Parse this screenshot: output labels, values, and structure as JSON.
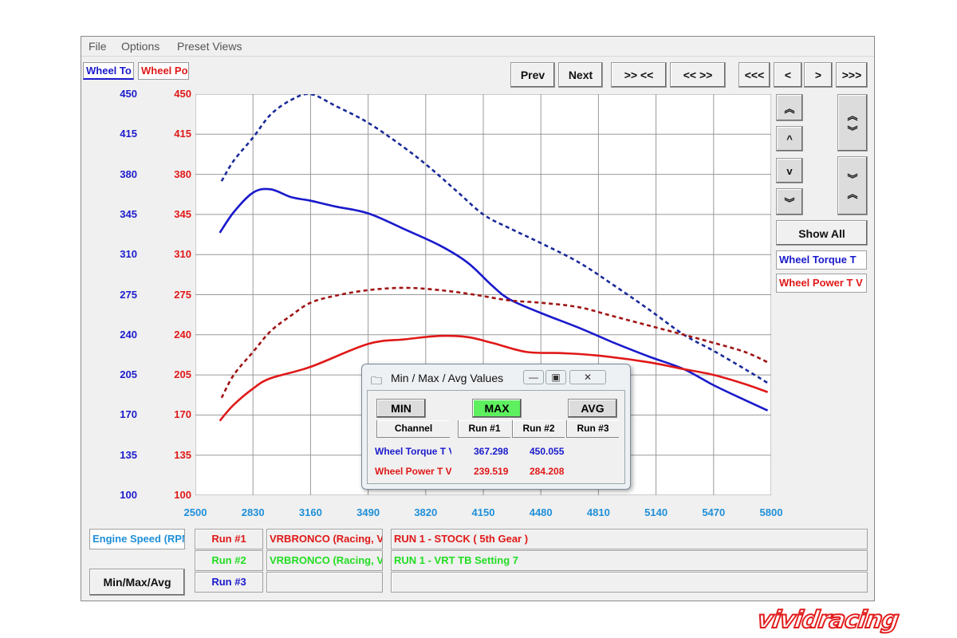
{
  "menu": [
    "File",
    "Options",
    "Preset Views"
  ],
  "tabs": {
    "left": "Wheel To",
    "right": "Wheel Po"
  },
  "nav": {
    "prev": "Prev",
    "next": "Next",
    "zoom_in": ">> <<",
    "zoom_out": "<< >>",
    "far_left": "<<<",
    "left": "<",
    "right": ">",
    "far_right": ">>>"
  },
  "scroll_buttons": {
    "up_double": "︽",
    "up": "^",
    "down": "v",
    "down_double": "︾"
  },
  "show_all": "Show All",
  "legend": {
    "torque": "Wheel Torque T",
    "power": "Wheel Power T V"
  },
  "colors": {
    "torque": "#1a1acc",
    "power": "#e01818",
    "power_run2": "#a01414",
    "torque_run2": "#1a2a9a",
    "run2_green": "#22dd22",
    "x_axis": "#1f8fd8"
  },
  "chart_data": {
    "type": "line",
    "x_range": [
      2500,
      5800
    ],
    "y_range": [
      100,
      450
    ],
    "x_ticks": [
      "2500",
      "2830",
      "3160",
      "3490",
      "3820",
      "4150",
      "4480",
      "4810",
      "5140",
      "5470",
      "5800"
    ],
    "y_ticks_left": [
      "450",
      "415",
      "380",
      "345",
      "310",
      "275",
      "240",
      "205",
      "170",
      "135",
      "100"
    ],
    "y_ticks_right": [
      "450",
      "415",
      "380",
      "345",
      "310",
      "275",
      "240",
      "205",
      "170",
      "135",
      "100"
    ],
    "grid": true,
    "series": [
      {
        "channel": "torque",
        "run": 1,
        "style": "solid",
        "points": [
          [
            2640,
            329
          ],
          [
            2720,
            347
          ],
          [
            2830,
            364
          ],
          [
            2930,
            367
          ],
          [
            3050,
            360
          ],
          [
            3160,
            357
          ],
          [
            3300,
            352
          ],
          [
            3490,
            346
          ],
          [
            3700,
            332
          ],
          [
            3900,
            318
          ],
          [
            4060,
            303
          ],
          [
            4200,
            283
          ],
          [
            4300,
            271
          ],
          [
            4480,
            259
          ],
          [
            4700,
            246
          ],
          [
            4900,
            233
          ],
          [
            5100,
            221
          ],
          [
            5300,
            210
          ],
          [
            5470,
            196
          ],
          [
            5650,
            183
          ],
          [
            5780,
            174
          ]
        ]
      },
      {
        "channel": "torque",
        "run": 2,
        "style": "dashed",
        "points": [
          [
            2650,
            374
          ],
          [
            2720,
            392
          ],
          [
            2830,
            412
          ],
          [
            2930,
            432
          ],
          [
            3050,
            445
          ],
          [
            3160,
            450
          ],
          [
            3300,
            440
          ],
          [
            3490,
            425
          ],
          [
            3700,
            403
          ],
          [
            3850,
            385
          ],
          [
            4000,
            365
          ],
          [
            4150,
            345
          ],
          [
            4300,
            333
          ],
          [
            4480,
            320
          ],
          [
            4700,
            303
          ],
          [
            4900,
            283
          ],
          [
            5100,
            262
          ],
          [
            5300,
            240
          ],
          [
            5470,
            226
          ],
          [
            5650,
            210
          ],
          [
            5780,
            198
          ]
        ]
      },
      {
        "channel": "power",
        "run": 1,
        "style": "solid",
        "points": [
          [
            2640,
            165
          ],
          [
            2720,
            179
          ],
          [
            2830,
            193
          ],
          [
            2930,
            202
          ],
          [
            3160,
            212
          ],
          [
            3490,
            232
          ],
          [
            3700,
            236
          ],
          [
            3900,
            239
          ],
          [
            4060,
            238
          ],
          [
            4200,
            233
          ],
          [
            4400,
            225
          ],
          [
            4600,
            224
          ],
          [
            4800,
            222
          ],
          [
            5100,
            216
          ],
          [
            5300,
            210
          ],
          [
            5470,
            205
          ],
          [
            5650,
            197
          ],
          [
            5780,
            190
          ]
        ]
      },
      {
        "channel": "power",
        "run": 2,
        "style": "dashed",
        "points": [
          [
            2650,
            185
          ],
          [
            2720,
            205
          ],
          [
            2830,
            225
          ],
          [
            2930,
            243
          ],
          [
            3050,
            257
          ],
          [
            3160,
            268
          ],
          [
            3300,
            274
          ],
          [
            3490,
            279
          ],
          [
            3700,
            281
          ],
          [
            3900,
            279
          ],
          [
            4100,
            275
          ],
          [
            4300,
            270
          ],
          [
            4480,
            268
          ],
          [
            4700,
            264
          ],
          [
            4900,
            256
          ],
          [
            5100,
            248
          ],
          [
            5300,
            240
          ],
          [
            5470,
            233
          ],
          [
            5650,
            225
          ],
          [
            5780,
            216
          ]
        ]
      }
    ]
  },
  "dialog": {
    "title": "Min / Max / Avg Values",
    "buttons": {
      "min": "MIN",
      "max": "MAX",
      "avg": "AVG"
    },
    "headers": {
      "channel": "Channel",
      "run1": "Run #1",
      "run2": "Run #2",
      "run3": "Run #3"
    },
    "rows": [
      {
        "channel": "Wheel Torque T V",
        "run1": "367.298",
        "run2": "450.055"
      },
      {
        "channel": "Wheel Power T V",
        "run1": "239.519",
        "run2": "284.208"
      }
    ]
  },
  "bottom": {
    "engine_speed": "Engine Speed (RPM)",
    "runs": [
      {
        "label": "Run #1",
        "vehicle": "VRBRONCO (Racing, V",
        "desc": "RUN 1 - STOCK ( 5th Gear )"
      },
      {
        "label": "Run #2",
        "vehicle": "VRBRONCO (Racing, V",
        "desc": "RUN 1 - VRT TB Setting 7"
      },
      {
        "label": "Run #3",
        "vehicle": "",
        "desc": ""
      }
    ],
    "min_max_avg": "Min/Max/Avg"
  },
  "logo": "vividracing"
}
